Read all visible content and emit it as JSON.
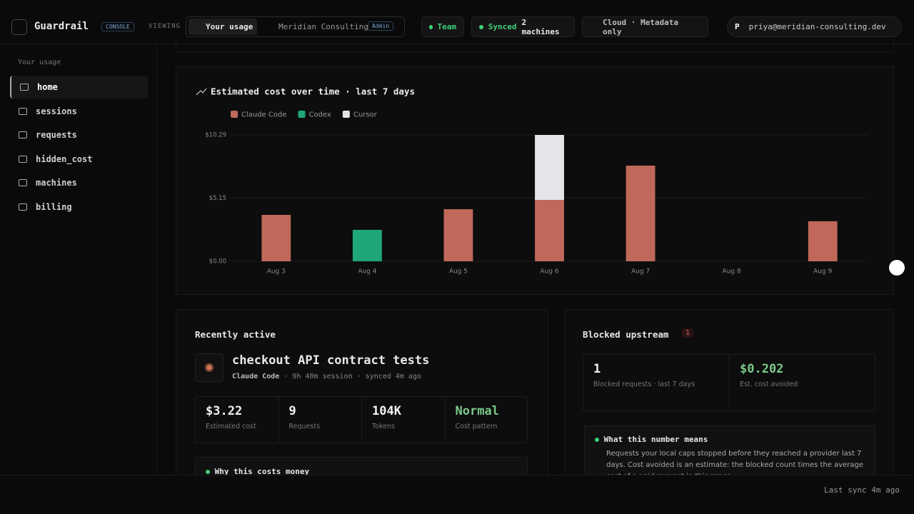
{
  "header": {
    "brand": "Guardrail",
    "badge": "CONSOLE",
    "viewing_label": "VIEWING",
    "tabs": [
      "Your usage",
      "Meridian Consulting"
    ],
    "role_badge": "Admin",
    "plan": "Team",
    "sync_label": "Synced",
    "sync_detail": "2 machines",
    "cloud": "Cloud · Metadata only",
    "avatar": "P",
    "email": "priya@meridian-consulting.dev"
  },
  "sidebar": {
    "section": "Your usage",
    "items": [
      "home",
      "sessions",
      "requests",
      "hidden_cost",
      "machines",
      "billing"
    ]
  },
  "chart_data": {
    "type": "bar",
    "stacked": true,
    "title": "Estimated cost over time · last 7 days",
    "categories": [
      "Aug 3",
      "Aug 4",
      "Aug 5",
      "Aug 6",
      "Aug 7",
      "Aug 8",
      "Aug 9"
    ],
    "series": [
      {
        "name": "Claude Code",
        "color": "#c0695a",
        "values": [
          3.78,
          0,
          4.24,
          5.0,
          7.79,
          0,
          3.26
        ]
      },
      {
        "name": "Codex",
        "color": "#1fa77a",
        "values": [
          0,
          2.56,
          0,
          0,
          0,
          0,
          0
        ]
      },
      {
        "name": "Cursor",
        "color": "#e3e5e8",
        "values": [
          0,
          0,
          0,
          5.29,
          0,
          0,
          0
        ]
      }
    ],
    "ylim": [
      0,
      10.29
    ],
    "yticks": [
      {
        "value": 0,
        "label": "$0.00"
      },
      {
        "value": 5.15,
        "label": "$5.15"
      },
      {
        "value": 10.29,
        "label": "$10.29"
      }
    ],
    "grid": true
  },
  "recent": {
    "title": "Recently active",
    "session": "checkout API contract tests",
    "tool": "Claude Code",
    "meta": "· 9h 40m session · synced 4m ago",
    "stats": [
      {
        "value": "$3.22",
        "label": "Estimated cost"
      },
      {
        "value": "9",
        "label": "Requests"
      },
      {
        "value": "104K",
        "label": "Tokens"
      },
      {
        "value": "Normal",
        "label": "Cost pattern"
      }
    ],
    "note_title": "Why this costs money"
  },
  "blocked": {
    "title": "Blocked upstream",
    "count": "1",
    "stats": [
      {
        "value": "1",
        "label": "Blocked requests · last 7 days"
      },
      {
        "value": "$0.202",
        "label": "Est. cost avoided"
      }
    ],
    "note_title": "What this number means",
    "note_text": "Requests your local caps stopped before they reached a provider last 7 days. Cost avoided is an estimate: the blocked count times the average cost of a paid request in this range."
  },
  "footer": {
    "status": "Last sync 4m ago"
  }
}
